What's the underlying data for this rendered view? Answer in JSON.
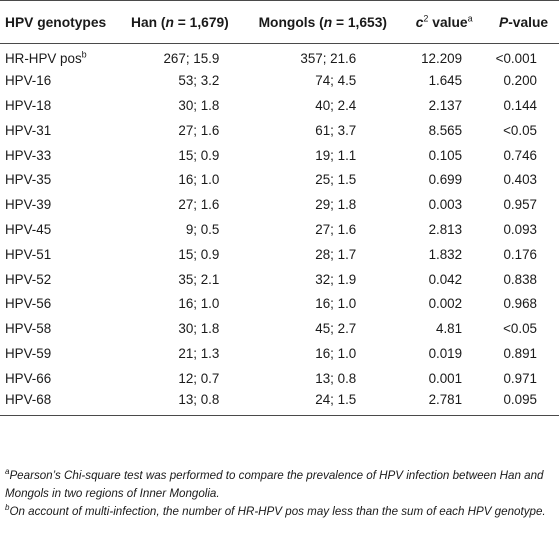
{
  "table": {
    "headers": {
      "genotype": "HPV genotypes",
      "han_prefix": "Han (",
      "han_n": "n",
      "han_suffix": " = 1,679)",
      "mongols_prefix": "Mongols (",
      "mongols_n": "n",
      "mongols_suffix": " = 1,653)",
      "chi_label": "c",
      "chi_sup": "2",
      "chi_suffix": " value",
      "chi_note": "a",
      "p_label": "P",
      "p_suffix": "-value"
    },
    "rows": [
      {
        "genotype": "HR-HPV pos",
        "genotype_sup": "b",
        "han": "267; 15.9",
        "mongols": "357; 21.6",
        "chi": "12.209",
        "p": "<0.001"
      },
      {
        "genotype": "HPV-16",
        "genotype_sup": "",
        "han": "53; 3.2",
        "mongols": "74; 4.5",
        "chi": "1.645",
        "p": "0.200"
      },
      {
        "genotype": "HPV-18",
        "genotype_sup": "",
        "han": "30; 1.8",
        "mongols": "40; 2.4",
        "chi": "2.137",
        "p": "0.144"
      },
      {
        "genotype": "HPV-31",
        "genotype_sup": "",
        "han": "27; 1.6",
        "mongols": "61; 3.7",
        "chi": "8.565",
        "p": "<0.05"
      },
      {
        "genotype": "HPV-33",
        "genotype_sup": "",
        "han": "15; 0.9",
        "mongols": "19; 1.1",
        "chi": "0.105",
        "p": "0.746"
      },
      {
        "genotype": "HPV-35",
        "genotype_sup": "",
        "han": "16; 1.0",
        "mongols": "25; 1.5",
        "chi": "0.699",
        "p": "0.403"
      },
      {
        "genotype": "HPV-39",
        "genotype_sup": "",
        "han": "27; 1.6",
        "mongols": "29; 1.8",
        "chi": "0.003",
        "p": "0.957"
      },
      {
        "genotype": "HPV-45",
        "genotype_sup": "",
        "han": "9; 0.5",
        "mongols": "27; 1.6",
        "chi": "2.813",
        "p": "0.093"
      },
      {
        "genotype": "HPV-51",
        "genotype_sup": "",
        "han": "15; 0.9",
        "mongols": "28; 1.7",
        "chi": "1.832",
        "p": "0.176"
      },
      {
        "genotype": "HPV-52",
        "genotype_sup": "",
        "han": "35; 2.1",
        "mongols": "32; 1.9",
        "chi": "0.042",
        "p": "0.838"
      },
      {
        "genotype": "HPV-56",
        "genotype_sup": "",
        "han": "16; 1.0",
        "mongols": "16; 1.0",
        "chi": "0.002",
        "p": "0.968"
      },
      {
        "genotype": "HPV-58",
        "genotype_sup": "",
        "han": "30; 1.8",
        "mongols": "45; 2.7",
        "chi": "4.81",
        "p": "<0.05"
      },
      {
        "genotype": "HPV-59",
        "genotype_sup": "",
        "han": "21; 1.3",
        "mongols": "16; 1.0",
        "chi": "0.019",
        "p": "0.891"
      },
      {
        "genotype": "HPV-66",
        "genotype_sup": "",
        "han": "12; 0.7",
        "mongols": "13; 0.8",
        "chi": "0.001",
        "p": "0.971"
      },
      {
        "genotype": "HPV-68",
        "genotype_sup": "",
        "han": "13; 0.8",
        "mongols": "24; 1.5",
        "chi": "2.781",
        "p": "0.095"
      }
    ]
  },
  "footnotes": [
    {
      "mark": "a",
      "text": "Pearson’s Chi-square test was performed to compare the prevalence of HPV infection between Han and Mongols in two regions of Inner Mongolia."
    },
    {
      "mark": "b",
      "text": "On account of multi-infection, the number of HR-HPV pos may less than the sum of each HPV genotype."
    }
  ],
  "colors": {
    "text": "#1a1a1a",
    "rule": "#4a4a4a",
    "background": "#ffffff"
  }
}
